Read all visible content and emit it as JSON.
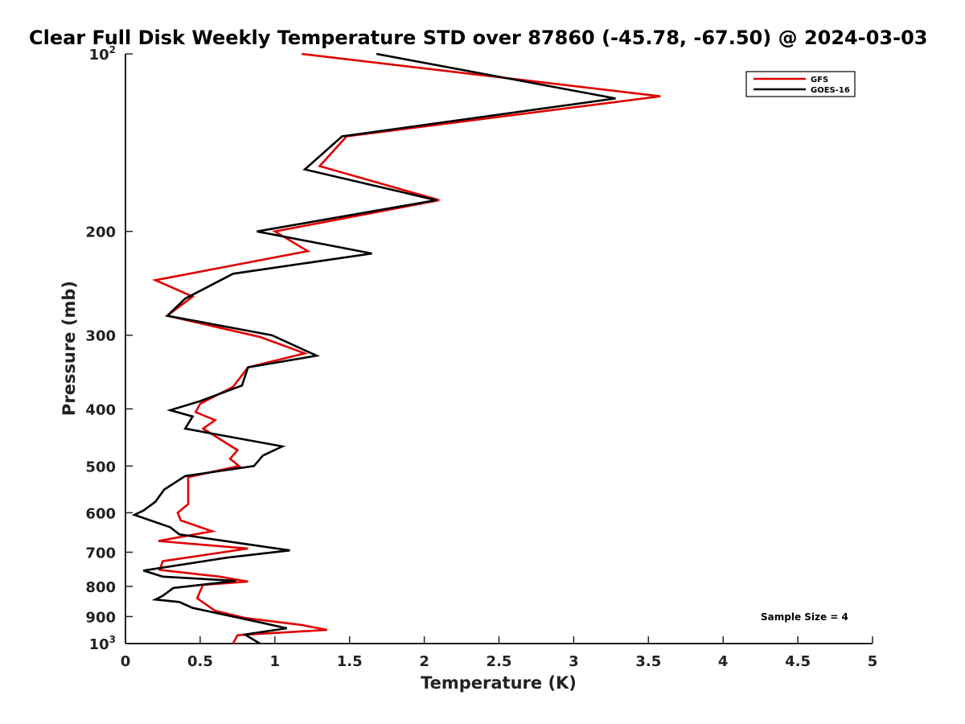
{
  "chart_data": {
    "type": "line",
    "title": "Clear Full Disk Weekly Temperature STD over 87860 (-45.78, -67.50) @ 2024-03-03",
    "xlabel": "Temperature (K)",
    "ylabel": "Pressure (mb)",
    "xlim": [
      0,
      5
    ],
    "ylim": [
      100,
      1000
    ],
    "y_scale": "log",
    "y_reversed": true,
    "grid": false,
    "x_ticks": [
      "0",
      "0.5",
      "1",
      "1.5",
      "2",
      "2.5",
      "3",
      "3.5",
      "4",
      "4.5",
      "5"
    ],
    "x_tick_values": [
      0,
      0.5,
      1,
      1.5,
      2,
      2.5,
      3,
      3.5,
      4,
      4.5,
      5
    ],
    "y_ticks": [
      {
        "value": 100,
        "base": "10",
        "exp": "2"
      },
      {
        "value": 200,
        "base": "200",
        "exp": ""
      },
      {
        "value": 300,
        "base": "300",
        "exp": ""
      },
      {
        "value": 400,
        "base": "400",
        "exp": ""
      },
      {
        "value": 500,
        "base": "500",
        "exp": ""
      },
      {
        "value": 600,
        "base": "600",
        "exp": ""
      },
      {
        "value": 700,
        "base": "700",
        "exp": ""
      },
      {
        "value": 800,
        "base": "800",
        "exp": ""
      },
      {
        "value": 900,
        "base": "900",
        "exp": ""
      },
      {
        "value": 1000,
        "base": "10",
        "exp": "3"
      }
    ],
    "legend_position": "top-right",
    "annotation": "Sample Size = 4",
    "series": [
      {
        "name": "GFS",
        "color": "#e00000",
        "points": [
          [
            1.18,
            100
          ],
          [
            3.58,
            118
          ],
          [
            1.48,
            138
          ],
          [
            1.3,
            155
          ],
          [
            2.1,
            177
          ],
          [
            1.0,
            200
          ],
          [
            1.22,
            216
          ],
          [
            0.2,
            242
          ],
          [
            0.45,
            258
          ],
          [
            0.28,
            278
          ],
          [
            0.9,
            302
          ],
          [
            1.2,
            322
          ],
          [
            0.82,
            340
          ],
          [
            0.72,
            367
          ],
          [
            0.5,
            392
          ],
          [
            0.47,
            405
          ],
          [
            0.6,
            418
          ],
          [
            0.52,
            432
          ],
          [
            0.75,
            470
          ],
          [
            0.7,
            486
          ],
          [
            0.76,
            500
          ],
          [
            0.42,
            522
          ],
          [
            0.42,
            580
          ],
          [
            0.35,
            600
          ],
          [
            0.37,
            618
          ],
          [
            0.58,
            645
          ],
          [
            0.22,
            670
          ],
          [
            0.82,
            690
          ],
          [
            0.25,
            725
          ],
          [
            0.23,
            750
          ],
          [
            0.63,
            770
          ],
          [
            0.82,
            785
          ],
          [
            0.52,
            795
          ],
          [
            0.5,
            815
          ],
          [
            0.48,
            838
          ],
          [
            0.6,
            880
          ],
          [
            0.8,
            905
          ],
          [
            1.18,
            930
          ],
          [
            1.35,
            948
          ],
          [
            0.75,
            968
          ],
          [
            0.72,
            1000
          ]
        ]
      },
      {
        "name": "GOES-16",
        "color": "#000000",
        "points": [
          [
            1.68,
            100
          ],
          [
            3.28,
            119
          ],
          [
            1.45,
            138
          ],
          [
            1.2,
            157
          ],
          [
            2.08,
            177
          ],
          [
            0.88,
            200
          ],
          [
            1.65,
            218
          ],
          [
            0.72,
            236
          ],
          [
            0.4,
            260
          ],
          [
            0.28,
            278
          ],
          [
            0.98,
            300
          ],
          [
            1.28,
            325
          ],
          [
            0.82,
            340
          ],
          [
            0.78,
            365
          ],
          [
            0.5,
            388
          ],
          [
            0.3,
            402
          ],
          [
            0.45,
            412
          ],
          [
            0.4,
            432
          ],
          [
            1.05,
            463
          ],
          [
            0.92,
            480
          ],
          [
            0.86,
            500
          ],
          [
            0.4,
            520
          ],
          [
            0.26,
            548
          ],
          [
            0.2,
            575
          ],
          [
            0.12,
            595
          ],
          [
            0.06,
            605
          ],
          [
            0.3,
            635
          ],
          [
            0.36,
            653
          ],
          [
            1.1,
            695
          ],
          [
            0.68,
            715
          ],
          [
            0.12,
            752
          ],
          [
            0.25,
            770
          ],
          [
            0.74,
            783
          ],
          [
            0.32,
            805
          ],
          [
            0.25,
            830
          ],
          [
            0.2,
            842
          ],
          [
            0.36,
            850
          ],
          [
            0.45,
            870
          ],
          [
            0.88,
            918
          ],
          [
            1.08,
            942
          ],
          [
            0.8,
            965
          ],
          [
            0.9,
            1000
          ]
        ]
      }
    ]
  }
}
